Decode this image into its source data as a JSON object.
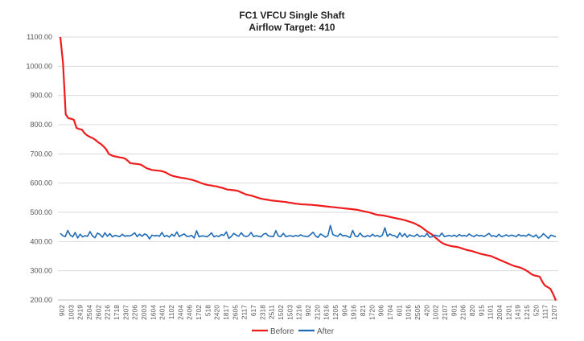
{
  "chart_data": {
    "type": "line",
    "title": "FC1 VFCU Single Shaft",
    "subtitle": "Airflow Target: 410",
    "xlabel": "",
    "ylabel": "",
    "ylim": [
      200,
      1100
    ],
    "yticks": [
      "1100.00",
      "1000.00",
      "900.00",
      "800.00",
      "700.00",
      "600.00",
      "500.00",
      "400.00",
      "300.00",
      "200.00"
    ],
    "grid": "horizontal",
    "legend_position": "bottom",
    "x_tick_labels": [
      "902",
      "1003",
      "2419",
      "2504",
      "2602",
      "2216",
      "1718",
      "2307",
      "2206",
      "2003",
      "1604",
      "2401",
      "1102",
      "2404",
      "2406",
      "1702",
      "518",
      "2420",
      "1817",
      "2605",
      "2117",
      "617",
      "2318",
      "2511",
      "1502",
      "1503",
      "1216",
      "902",
      "2120",
      "1616",
      "1205",
      "904",
      "1916",
      "821",
      "1720",
      "906",
      "1704",
      "601",
      "1016",
      "2505",
      "420",
      "1002",
      "2107",
      "901",
      "2106",
      "820",
      "915",
      "1101",
      "2004",
      "1201",
      "1419",
      "1215",
      "520",
      "1117",
      "1207"
    ],
    "series": [
      {
        "name": "Before",
        "color": "#ee1c1c",
        "values": [
          1100,
          1010,
          835,
          822,
          820,
          817,
          789,
          785,
          783,
          771,
          763,
          758,
          754,
          748,
          740,
          734,
          726,
          716,
          700,
          695,
          692,
          690,
          688,
          687,
          684,
          677,
          668,
          667,
          666,
          665,
          663,
          657,
          651,
          648,
          645,
          644,
          643,
          642,
          640,
          637,
          632,
          627,
          624,
          622,
          620,
          618,
          617,
          615,
          613,
          611,
          608,
          605,
          601,
          598,
          595,
          593,
          592,
          590,
          589,
          586,
          584,
          581,
          578,
          577,
          576,
          575,
          573,
          569,
          565,
          561,
          559,
          557,
          554,
          551,
          548,
          546,
          544,
          543,
          541,
          540,
          539,
          538,
          537,
          536,
          535,
          533,
          532,
          530,
          529,
          528,
          527,
          527,
          526,
          526,
          525,
          524,
          523,
          522,
          521,
          520,
          519,
          518,
          517,
          516,
          515,
          514,
          513,
          512,
          511,
          510,
          509,
          507,
          505,
          503,
          501,
          499,
          496,
          493,
          491,
          490,
          489,
          487,
          485,
          483,
          481,
          479,
          477,
          475,
          473,
          470,
          467,
          464,
          460,
          455,
          450,
          443,
          436,
          430,
          424,
          416,
          408,
          400,
          394,
          390,
          387,
          385,
          383,
          382,
          380,
          377,
          374,
          371,
          369,
          367,
          364,
          361,
          358,
          356,
          354,
          352,
          350,
          346,
          342,
          338,
          334,
          330,
          326,
          322,
          318,
          315,
          313,
          310,
          306,
          301,
          295,
          288,
          284,
          282,
          280,
          262,
          249,
          244,
          238,
          220,
          198
        ]
      },
      {
        "name": "After",
        "color": "#1f6bb5",
        "values": [
          428,
          420,
          417,
          438,
          422,
          416,
          431,
          412,
          425,
          416,
          420,
          418,
          434,
          419,
          413,
          429,
          424,
          415,
          430,
          418,
          427,
          416,
          421,
          419,
          417,
          425,
          418,
          420,
          419,
          423,
          430,
          417,
          425,
          418,
          426,
          422,
          409,
          422,
          419,
          421,
          418,
          431,
          417,
          421,
          415,
          425,
          418,
          433,
          417,
          422,
          426,
          418,
          418,
          421,
          412,
          437,
          416,
          419,
          419,
          416,
          421,
          430,
          416,
          420,
          417,
          424,
          421,
          433,
          411,
          417,
          428,
          422,
          418,
          430,
          420,
          417,
          420,
          431,
          417,
          420,
          418,
          416,
          425,
          428,
          419,
          418,
          417,
          437,
          419,
          417,
          428,
          417,
          419,
          420,
          417,
          421,
          418,
          423,
          419,
          418,
          417,
          424,
          432,
          419,
          414,
          426,
          421,
          415,
          420,
          455,
          424,
          420,
          418,
          427,
          419,
          421,
          417,
          414,
          438,
          419,
          417,
          429,
          418,
          416,
          421,
          417,
          425,
          418,
          421,
          416,
          422,
          447,
          418,
          426,
          421,
          420,
          413,
          430,
          417,
          427,
          415,
          423,
          419,
          418,
          425,
          417,
          420,
          417,
          428,
          415,
          416,
          422,
          420,
          418,
          429,
          417,
          419,
          421,
          418,
          422,
          417,
          424,
          419,
          421,
          418,
          426,
          420,
          417,
          423,
          419,
          421,
          417,
          422,
          428,
          418,
          420,
          416,
          425,
          417,
          419,
          423,
          418,
          422,
          420,
          417,
          424,
          419,
          421,
          418,
          425,
          420,
          416,
          423,
          412,
          417,
          427,
          419,
          411,
          422,
          419,
          416
        ]
      }
    ]
  }
}
